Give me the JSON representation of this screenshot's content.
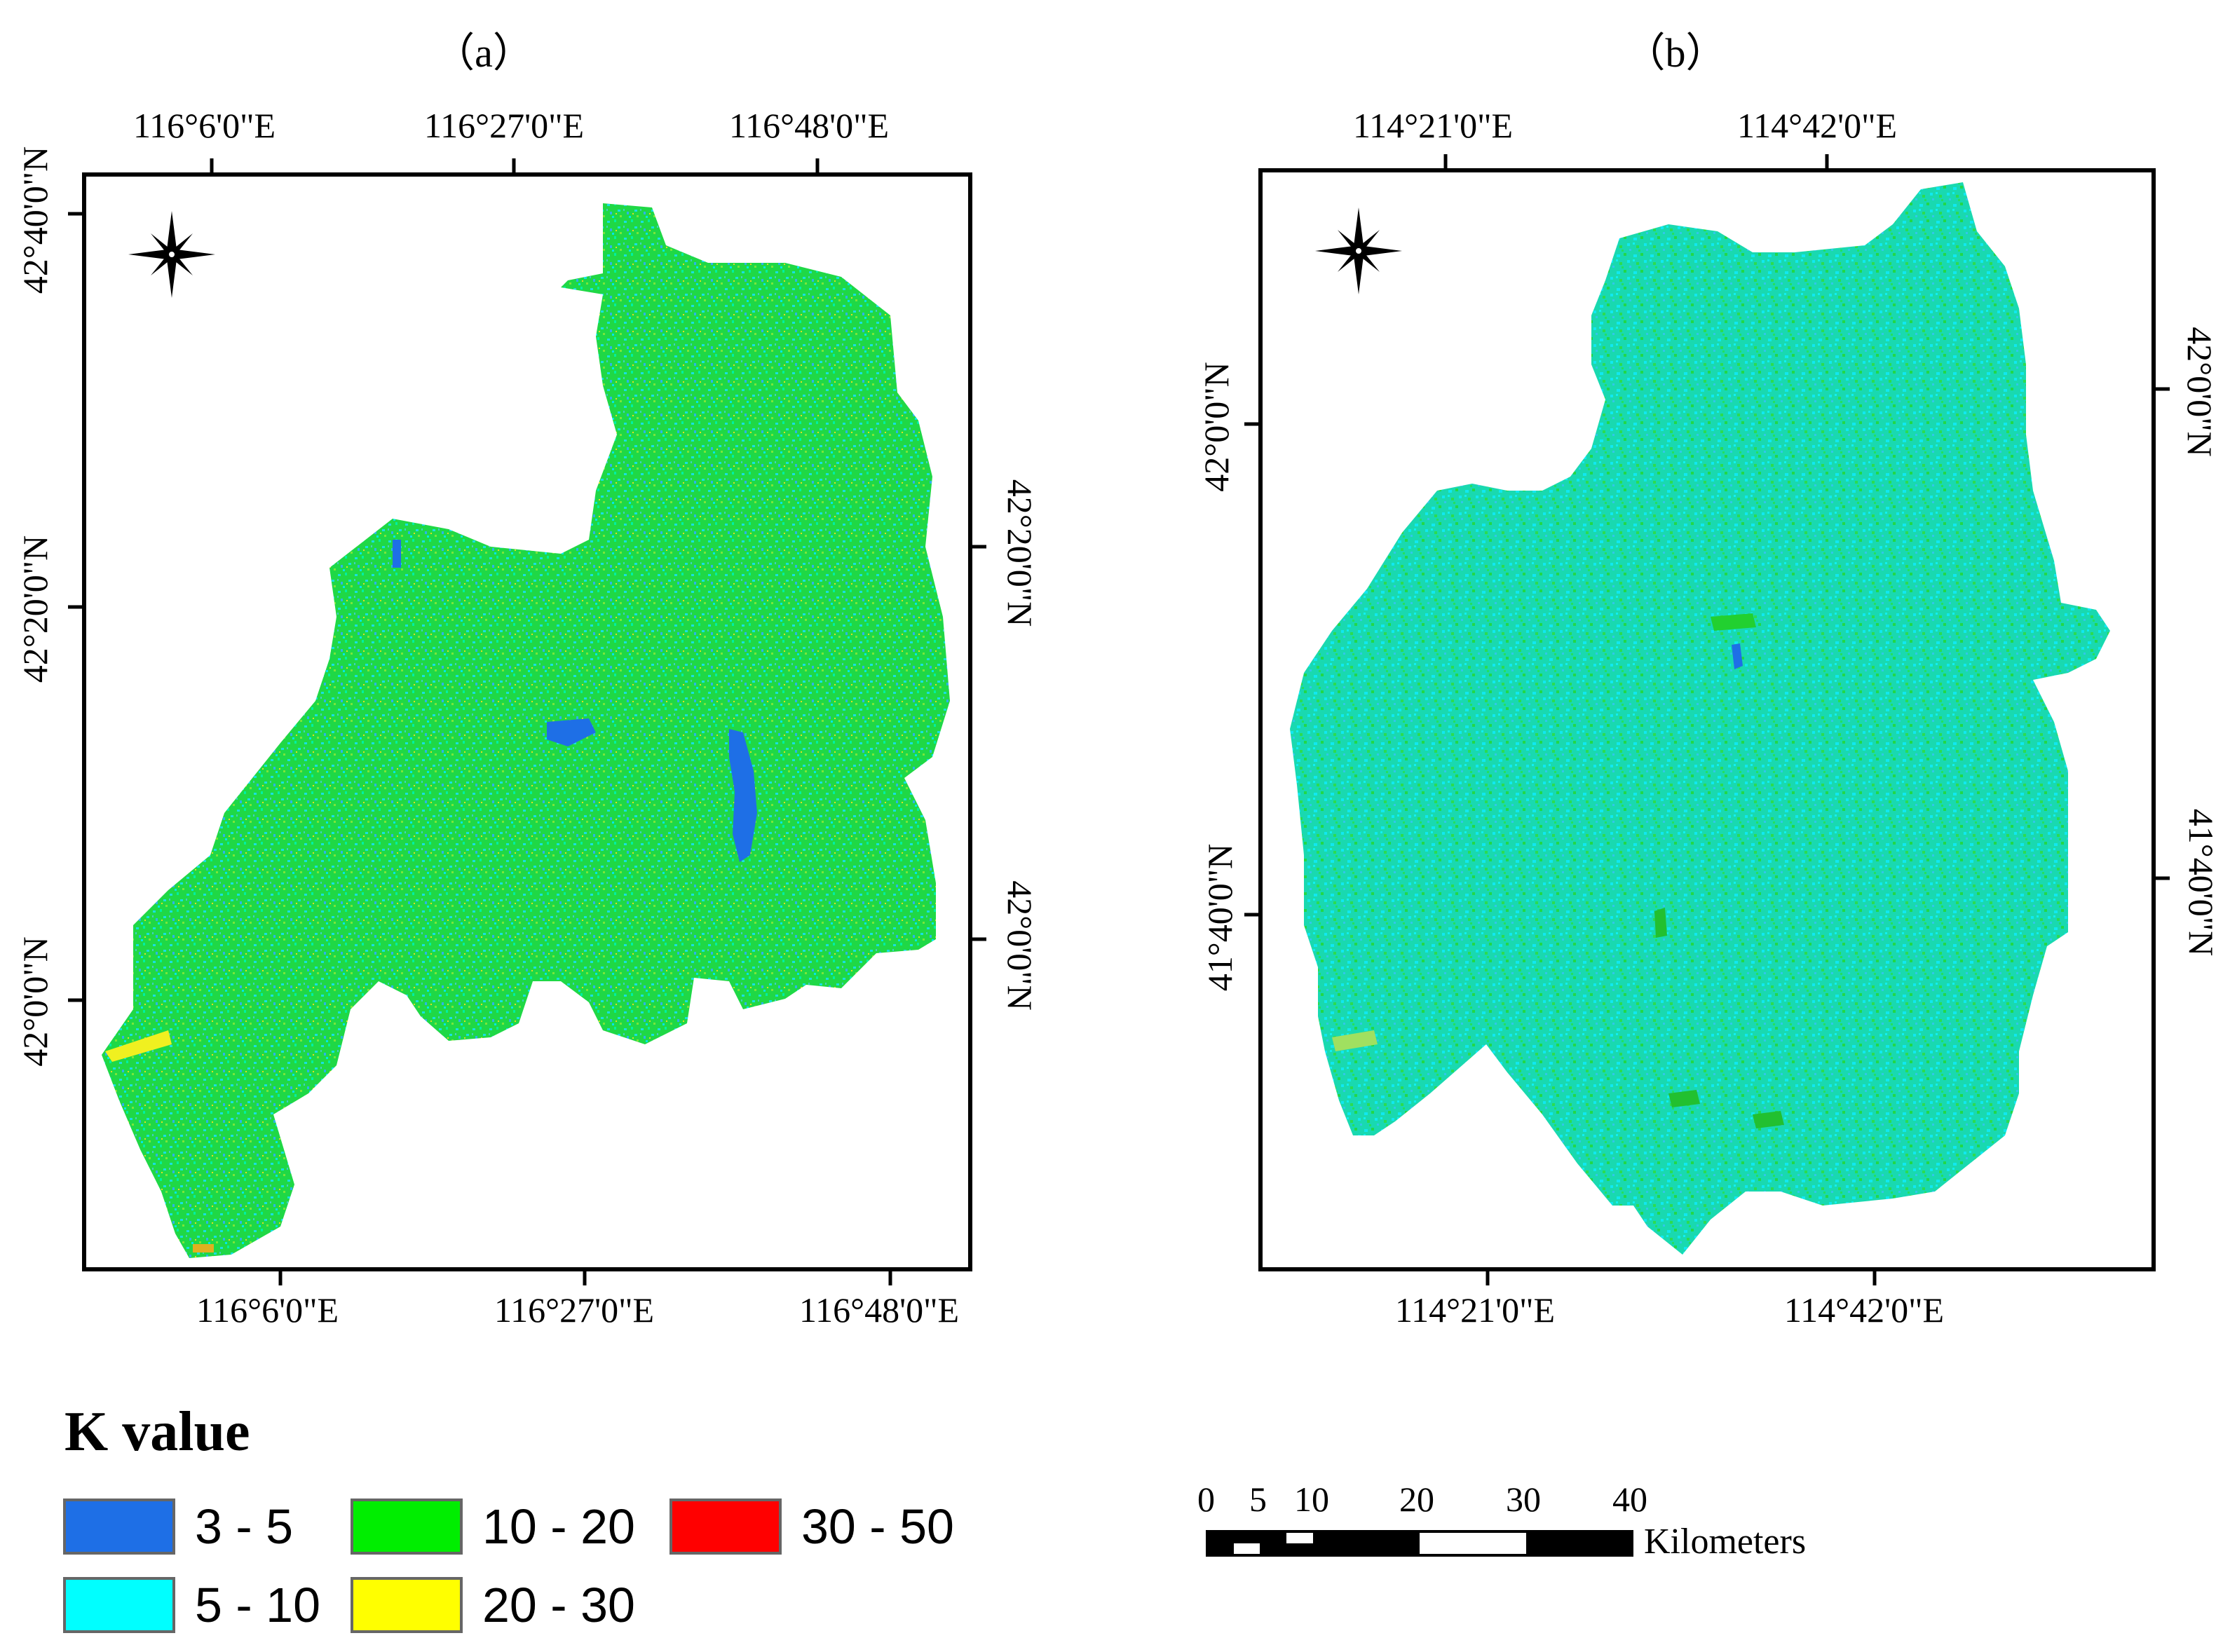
{
  "panels": [
    {
      "id": "a",
      "title": "（a）",
      "top_ticks": [
        "116°6'0\"E",
        "116°27'0\"E",
        "116°48'0\"E"
      ],
      "bottom_ticks": [
        "116°6'0\"E",
        "116°27'0\"E",
        "116°48'0\"E"
      ],
      "left_ticks": [
        "42°40'0\"N",
        "42°20'0\"N",
        "42°0'0\"N"
      ],
      "right_ticks": [
        "42°20'0\"N",
        "42°0'0\"N"
      ]
    },
    {
      "id": "b",
      "title": "（b）",
      "top_ticks": [
        "114°21'0\"E",
        "114°42'0\"E"
      ],
      "bottom_ticks": [
        "114°21'0\"E",
        "114°42'0\"E"
      ],
      "left_ticks": [
        "42°0'0\"N",
        "41°40'0\"N"
      ],
      "right_ticks": [
        "42°0'0\"N",
        "41°40'0\"N"
      ]
    }
  ],
  "legend": {
    "title": "K value",
    "items": [
      {
        "label": "3 - 5",
        "color": "#1e6fe6"
      },
      {
        "label": "5 - 10",
        "color": "#00ffff"
      },
      {
        "label": "10 - 20",
        "color": "#00ee00"
      },
      {
        "label": "20 - 30",
        "color": "#ffff00"
      },
      {
        "label": "30 - 50",
        "color": "#ff0000"
      }
    ]
  },
  "scale_bar": {
    "ticks": [
      "0",
      "5",
      "10",
      "20",
      "30",
      "40"
    ],
    "unit": "Kilometers"
  },
  "icons": [
    "north-arrow-icon"
  ]
}
